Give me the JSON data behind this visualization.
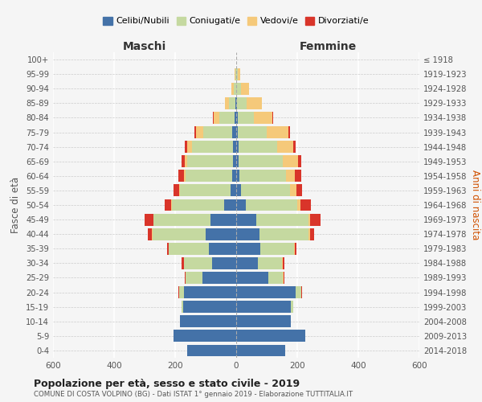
{
  "age_groups": [
    "0-4",
    "5-9",
    "10-14",
    "15-19",
    "20-24",
    "25-29",
    "30-34",
    "35-39",
    "40-44",
    "45-49",
    "50-54",
    "55-59",
    "60-64",
    "65-69",
    "70-74",
    "75-79",
    "80-84",
    "85-89",
    "90-94",
    "95-99",
    "100+"
  ],
  "birth_years": [
    "2014-2018",
    "2009-2013",
    "2004-2008",
    "1999-2003",
    "1994-1998",
    "1989-1993",
    "1984-1988",
    "1979-1983",
    "1974-1978",
    "1969-1973",
    "1964-1968",
    "1959-1963",
    "1954-1958",
    "1949-1953",
    "1944-1948",
    "1939-1943",
    "1934-1938",
    "1929-1933",
    "1924-1928",
    "1919-1923",
    "≤ 1918"
  ],
  "maschi": {
    "celibi": [
      160,
      205,
      185,
      175,
      170,
      110,
      80,
      90,
      100,
      85,
      40,
      18,
      12,
      10,
      10,
      12,
      5,
      3,
      1,
      1,
      0
    ],
    "coniugati": [
      0,
      0,
      0,
      5,
      18,
      55,
      90,
      130,
      175,
      185,
      170,
      165,
      155,
      150,
      135,
      95,
      50,
      20,
      8,
      2,
      0
    ],
    "vedovi": [
      0,
      0,
      0,
      0,
      0,
      0,
      0,
      1,
      2,
      2,
      2,
      3,
      5,
      8,
      15,
      25,
      20,
      15,
      8,
      2,
      0
    ],
    "divorziati": [
      0,
      0,
      0,
      0,
      2,
      3,
      8,
      5,
      12,
      28,
      22,
      20,
      18,
      10,
      8,
      5,
      2,
      0,
      0,
      0,
      0
    ]
  },
  "femmine": {
    "nubili": [
      160,
      225,
      180,
      180,
      195,
      105,
      70,
      80,
      75,
      65,
      32,
      15,
      10,
      8,
      8,
      6,
      4,
      3,
      1,
      1,
      0
    ],
    "coniugate": [
      0,
      0,
      0,
      8,
      18,
      48,
      80,
      110,
      162,
      172,
      168,
      162,
      152,
      145,
      125,
      95,
      55,
      30,
      15,
      5,
      0
    ],
    "vedove": [
      0,
      0,
      0,
      0,
      0,
      2,
      2,
      2,
      5,
      5,
      10,
      20,
      30,
      50,
      55,
      70,
      60,
      50,
      25,
      8,
      1
    ],
    "divorziate": [
      0,
      0,
      0,
      0,
      2,
      2,
      5,
      5,
      12,
      35,
      35,
      20,
      20,
      10,
      8,
      5,
      2,
      2,
      0,
      0,
      0
    ]
  },
  "colors": {
    "celibi": "#4472a8",
    "coniugati": "#c5d9a0",
    "vedovi": "#f5c97a",
    "divorziati": "#d9352a"
  },
  "title": "Popolazione per età, sesso e stato civile - 2019",
  "subtitle": "COMUNE DI COSTA VOLPINO (BG) - Dati ISTAT 1° gennaio 2019 - Elaborazione TUTTITALIA.IT",
  "xlabel_left": "Maschi",
  "xlabel_right": "Femmine",
  "ylabel_left": "Fasce di età",
  "ylabel_right": "Anni di nascita",
  "xlim": 600,
  "legend_labels": [
    "Celibi/Nubili",
    "Coniugati/e",
    "Vedovi/e",
    "Divorziati/e"
  ],
  "bg_color": "#f5f5f5"
}
